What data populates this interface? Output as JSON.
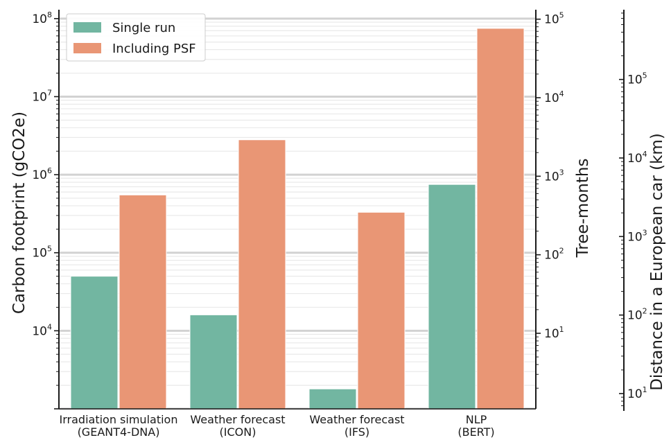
{
  "chart_data": {
    "type": "bar",
    "categories": [
      [
        "Irradiation simulation",
        "(GEANT4-DNA)"
      ],
      [
        "Weather forecast",
        "(ICON)"
      ],
      [
        "Weather forecast",
        "(IFS)"
      ],
      [
        "NLP",
        "(BERT)"
      ]
    ],
    "series": [
      {
        "name": "Single run",
        "color": "#72b6a1",
        "values": [
          50000,
          16000,
          1800,
          750000
        ]
      },
      {
        "name": "Including PSF",
        "color": "#e99675",
        "values": [
          550000,
          2800000,
          330000,
          75000000
        ]
      }
    ],
    "ylabel": "Carbon footprint (gCO2e)",
    "yscale": "log",
    "ylim": [
      1000,
      130000000
    ],
    "left_ticks": [
      {
        "base": "10",
        "exp": "4",
        "value": 10000
      },
      {
        "base": "10",
        "exp": "5",
        "value": 100000
      },
      {
        "base": "10",
        "exp": "6",
        "value": 1000000
      },
      {
        "base": "10",
        "exp": "7",
        "value": 10000000
      },
      {
        "base": "10",
        "exp": "8",
        "value": 100000000
      }
    ],
    "secondary_axes": [
      {
        "label": "Tree-months",
        "ticks": [
          {
            "base": "10",
            "exp": "1",
            "value": 10
          },
          {
            "base": "10",
            "exp": "2",
            "value": 100
          },
          {
            "base": "10",
            "exp": "3",
            "value": 1000
          },
          {
            "base": "10",
            "exp": "4",
            "value": 10000
          },
          {
            "base": "10",
            "exp": "5",
            "value": 100000
          }
        ]
      },
      {
        "label": "Distance in a European car (km)",
        "ticks": [
          {
            "base": "10",
            "exp": "1",
            "value": 10
          },
          {
            "base": "10",
            "exp": "2",
            "value": 100
          },
          {
            "base": "10",
            "exp": "3",
            "value": 1000
          },
          {
            "base": "10",
            "exp": "4",
            "value": 10000
          },
          {
            "base": "10",
            "exp": "5",
            "value": 100000
          }
        ]
      }
    ],
    "grid": true,
    "legend": "top-left"
  }
}
